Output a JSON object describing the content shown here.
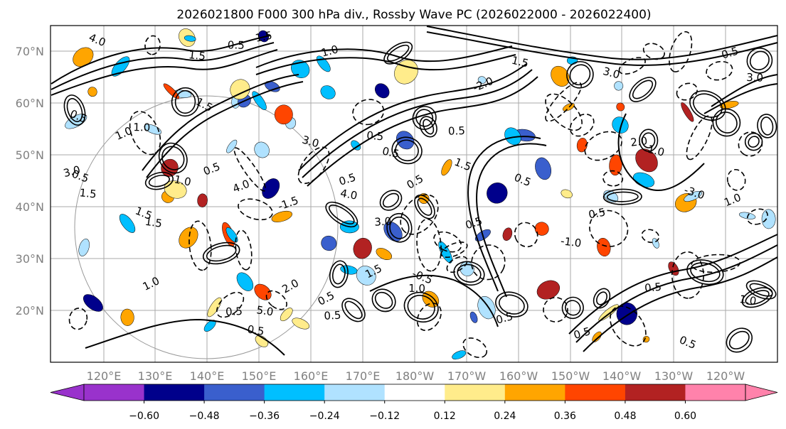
{
  "title": "2026021800 F000 300 hPa div., Rossby Wave PC (2026022000 - 2026022400)",
  "map": {
    "lat_labels": [
      "70°N",
      "60°N",
      "50°N",
      "40°N",
      "30°N",
      "20°N"
    ],
    "lon_labels": [
      "120°E",
      "130°E",
      "140°E",
      "150°E",
      "160°E",
      "170°E",
      "180°W",
      "170°W",
      "160°W",
      "150°W",
      "140°W",
      "130°W",
      "120°W"
    ],
    "contour_labels": [
      "5.0",
      "4.0",
      "3.0",
      "2.0",
      "1.5",
      "1.0",
      "0.5",
      "-0.5",
      "-1.0",
      "-1.5",
      "-2.0",
      "-3.0",
      "3.0",
      "1.0",
      "0.5",
      "1.5",
      "3.0",
      "4.0",
      "3.0",
      "1.5",
      "0.5",
      "1.5",
      "0.5",
      "0.5",
      "1.0",
      "0.5",
      "2.0",
      "1.5",
      "1.0",
      "0.5",
      "0.5",
      "1.5",
      "0.5",
      "0.5",
      "1.0",
      "1.0",
      "0.5",
      "0.5",
      "1.5",
      "3.0",
      "0.5",
      "4.0",
      "1.0",
      "0.5",
      "0.5",
      "0.5",
      "0.5",
      "1.0",
      "1.0",
      "1.5",
      "0.5",
      "0.5",
      "0.5",
      "1.5",
      "0.5"
    ]
  },
  "colorbar": {
    "ticks": [
      "−0.60",
      "−0.48",
      "−0.36",
      "−0.24",
      "−0.12",
      "0.12",
      "0.24",
      "0.36",
      "0.48",
      "0.60"
    ],
    "colors": [
      "#9932cc",
      "#00008b",
      "#3a5fcd",
      "#00bfff",
      "#b0e2ff",
      "#ffffff",
      "#ffec8b",
      "#ffa500",
      "#ff4500",
      "#b22222",
      "#ff82ab"
    ]
  }
}
